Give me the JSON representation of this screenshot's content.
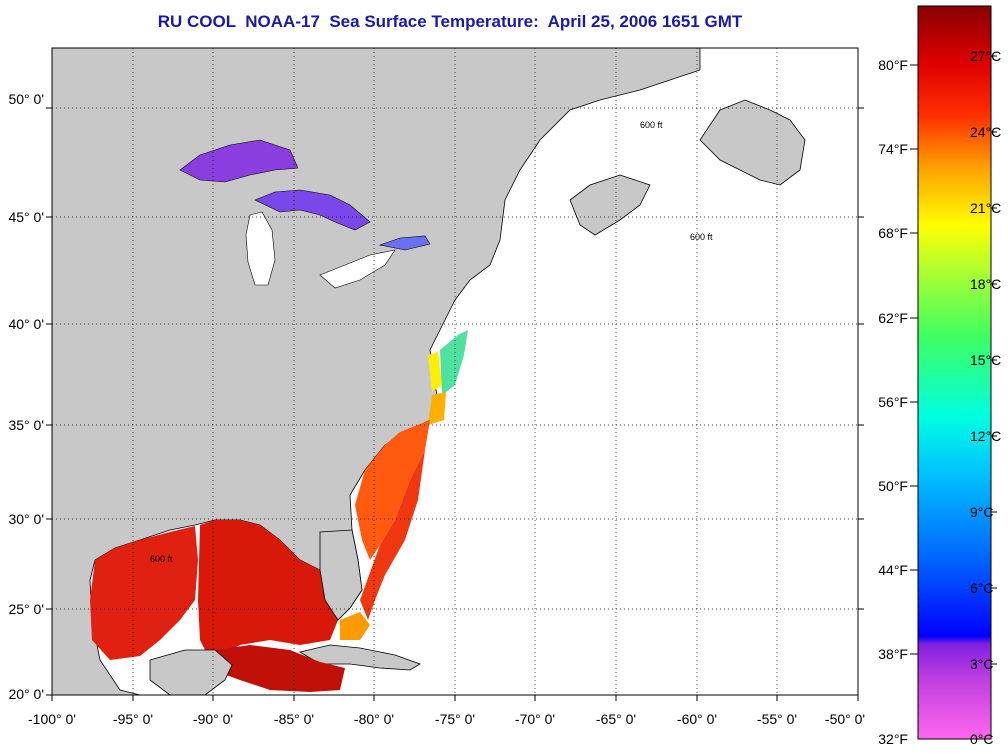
{
  "title": "RU COOL  NOAA-17  Sea Surface Temperature:  April 25, 2006 1651 GMT",
  "map": {
    "lat_labels": [
      "50° 0'",
      "45° 0'",
      "40° 0'",
      "35° 0'",
      "30° 0'",
      "25° 0'",
      "20° 0'"
    ],
    "lon_labels": [
      "-100° 0'",
      "-95° 0'",
      "-90° 0'",
      "-85° 0'",
      "-80° 0'",
      "-75° 0'",
      "-70° 0'",
      "-65° 0'",
      "-60° 0'",
      "-55° 0'",
      "-50° 0'"
    ],
    "contour_label": "600 ft",
    "colors": {
      "land": "#c8c8c8",
      "ocean": "#ffffff",
      "grid": "#000000"
    }
  },
  "colorbar": {
    "fahrenheit_labels": [
      "80°F",
      "74°F",
      "68°F",
      "62°F",
      "56°F",
      "50°F",
      "44°F",
      "38°F",
      "32°F"
    ],
    "celsius_labels": [
      "27°C",
      "24°C",
      "21°C",
      "18°C",
      "15°C",
      "12°C",
      "9°C",
      "6°C",
      "3°C",
      "0°C"
    ],
    "range_celsius": [
      0,
      28.5
    ]
  }
}
